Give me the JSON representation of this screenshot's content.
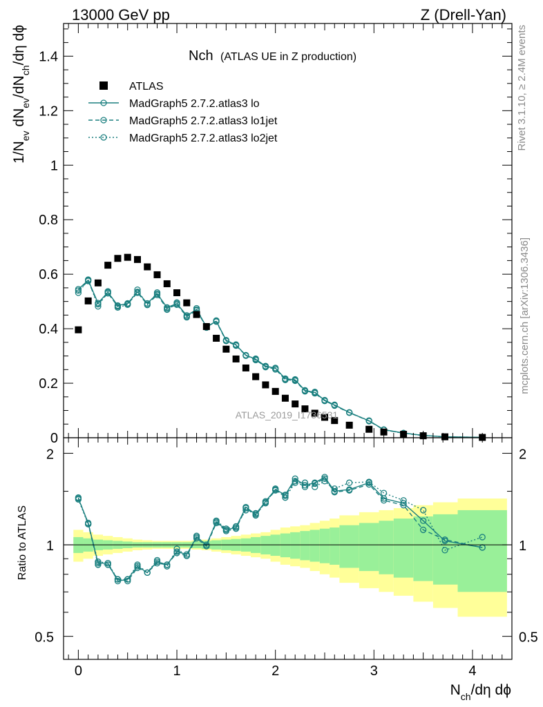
{
  "header": {
    "left": "13000 GeV pp",
    "right": "Z (Drell-Yan)"
  },
  "side_labels": {
    "rivet": "Rivet 3.1.10, ≥ 2.4M events",
    "mcplots": "mcplots.cern.ch [arXiv:1306.3436]"
  },
  "watermark": "ATLAS_2019_I1736531",
  "colors": {
    "mc": "#1a7f7f",
    "data": "#000000",
    "band_inner": "#99f099",
    "band_outer": "#ffff99"
  },
  "chart_data": [
    {
      "type": "scatter",
      "panel": "main",
      "title": "Nch",
      "subtitle": "(ATLAS UE in Z production)",
      "xlabel": "N_ch/dη dϕ",
      "ylabel": "1/N_ev dN_ev/dN_ch/dη dϕ",
      "xlim": [
        -0.15,
        4.4
      ],
      "ylim": [
        0,
        1.52
      ],
      "yticks": [
        0,
        0.2,
        0.4,
        0.6,
        0.8,
        1,
        1.2,
        1.4
      ],
      "ytick_labels": [
        "0",
        "0.2",
        "0.4",
        "0.6",
        "0.8",
        "1",
        "1.2",
        "1.4"
      ],
      "legend_position": "top-left",
      "series": [
        {
          "name": "ATLAS",
          "style": "square",
          "x": [
            0,
            0.1,
            0.2,
            0.3,
            0.4,
            0.5,
            0.6,
            0.7,
            0.8,
            0.9,
            1.0,
            1.1,
            1.2,
            1.3,
            1.4,
            1.5,
            1.6,
            1.7,
            1.8,
            1.9,
            2.0,
            2.1,
            2.2,
            2.3,
            2.4,
            2.5,
            2.6,
            2.75,
            2.95,
            3.1,
            3.3,
            3.5,
            3.72,
            4.1
          ],
          "y": [
            0.396,
            0.502,
            0.568,
            0.633,
            0.658,
            0.662,
            0.654,
            0.627,
            0.598,
            0.565,
            0.532,
            0.495,
            0.452,
            0.408,
            0.365,
            0.325,
            0.289,
            0.256,
            0.224,
            0.194,
            0.17,
            0.145,
            0.124,
            0.106,
            0.09,
            0.075,
            0.063,
            0.046,
            0.031,
            0.021,
            0.0125,
            0.0072,
            0.0034,
            0.0012
          ]
        },
        {
          "name": "MadGraph5 2.7.2.atlas3 lo",
          "style": "solid",
          "x": [
            0,
            0.1,
            0.2,
            0.3,
            0.4,
            0.5,
            0.6,
            0.7,
            0.8,
            0.9,
            1.0,
            1.1,
            1.2,
            1.3,
            1.4,
            1.5,
            1.6,
            1.7,
            1.8,
            1.9,
            2.0,
            2.1,
            2.2,
            2.3,
            2.4,
            2.5,
            2.6,
            2.75,
            2.95,
            3.1,
            3.3,
            3.5,
            3.72,
            4.1
          ],
          "y": [
            0.545,
            0.578,
            0.494,
            0.534,
            0.485,
            0.493,
            0.535,
            0.493,
            0.528,
            0.478,
            0.492,
            0.449,
            0.47,
            0.407,
            0.427,
            0.358,
            0.34,
            0.303,
            0.288,
            0.263,
            0.255,
            0.217,
            0.212,
            0.174,
            0.166,
            0.138,
            0.12,
            0.093,
            0.062,
            0.03,
            0.0172,
            0.0086,
            0.0036,
            0.0012
          ]
        },
        {
          "name": "MadGraph5 2.7.2.atlas3 lo1jet",
          "style": "dashed",
          "x": [
            0,
            0.1,
            0.2,
            0.3,
            0.4,
            0.5,
            0.6,
            0.7,
            0.8,
            0.9,
            1.0,
            1.1,
            1.2,
            1.3,
            1.4,
            1.5,
            1.6,
            1.7,
            1.8,
            1.9,
            2.0,
            2.1,
            2.2,
            2.3,
            2.4,
            2.5,
            2.6,
            2.75,
            2.95,
            3.1,
            3.3,
            3.5,
            3.72,
            4.1
          ],
          "y": [
            0.54,
            0.575,
            0.49,
            0.53,
            0.482,
            0.49,
            0.532,
            0.489,
            0.524,
            0.474,
            0.488,
            0.445,
            0.467,
            0.406,
            0.426,
            0.355,
            0.338,
            0.302,
            0.285,
            0.261,
            0.251,
            0.214,
            0.209,
            0.172,
            0.163,
            0.136,
            0.118,
            0.092,
            0.061,
            0.029,
            0.0168,
            0.0082,
            0.0035,
            0.0012
          ]
        },
        {
          "name": "MadGraph5 2.7.2.atlas3 lo2jet",
          "style": "dotted",
          "x": [
            0,
            0.1,
            0.2,
            0.3,
            0.4,
            0.5,
            0.6,
            0.7,
            0.8,
            0.9,
            1.0,
            1.1,
            1.2,
            1.3,
            1.4,
            1.5,
            1.6,
            1.7,
            1.8,
            1.9,
            2.0,
            2.1,
            2.2,
            2.3,
            2.4,
            2.5,
            2.6,
            2.75,
            2.95,
            3.1,
            3.3,
            3.5,
            3.72,
            4.1
          ],
          "y": [
            0.532,
            0.58,
            0.482,
            0.537,
            0.478,
            0.488,
            0.543,
            0.487,
            0.533,
            0.47,
            0.496,
            0.442,
            0.475,
            0.404,
            0.43,
            0.356,
            0.342,
            0.301,
            0.29,
            0.259,
            0.256,
            0.212,
            0.214,
            0.17,
            0.168,
            0.135,
            0.121,
            0.092,
            0.063,
            0.029,
            0.0168,
            0.0082,
            0.0035,
            0.0013
          ]
        }
      ]
    },
    {
      "type": "scatter",
      "panel": "ratio",
      "xlabel": "N_ch/dη dϕ",
      "ylabel": "Ratio to ATLAS",
      "xlim": [
        -0.15,
        4.4
      ],
      "ylim": [
        0.42,
        2.25
      ],
      "log_y": true,
      "xticks": [
        0,
        1,
        2,
        3,
        4
      ],
      "xtick_labels": [
        "0",
        "1",
        "2",
        "3",
        "4"
      ],
      "yticks": [
        0.5,
        1,
        2
      ],
      "ytick_labels": [
        "0.5",
        "1",
        "2"
      ],
      "band_edges": [
        -0.05,
        0.05,
        0.15,
        0.25,
        0.35,
        0.45,
        0.55,
        0.65,
        0.75,
        0.85,
        0.95,
        1.05,
        1.15,
        1.25,
        1.35,
        1.45,
        1.55,
        1.65,
        1.75,
        1.85,
        1.95,
        2.05,
        2.15,
        2.25,
        2.35,
        2.45,
        2.55,
        2.65,
        2.85,
        3.05,
        3.2,
        3.4,
        3.6,
        3.85,
        4.35
      ],
      "band_inner": [
        0.06,
        0.05,
        0.04,
        0.035,
        0.03,
        0.025,
        0.02,
        0.02,
        0.02,
        0.02,
        0.02,
        0.02,
        0.025,
        0.03,
        0.035,
        0.04,
        0.045,
        0.05,
        0.06,
        0.07,
        0.08,
        0.09,
        0.1,
        0.11,
        0.12,
        0.13,
        0.14,
        0.16,
        0.18,
        0.2,
        0.22,
        0.24,
        0.26,
        0.3
      ],
      "band_outer": [
        0.12,
        0.1,
        0.08,
        0.07,
        0.06,
        0.05,
        0.04,
        0.035,
        0.03,
        0.03,
        0.03,
        0.03,
        0.035,
        0.04,
        0.05,
        0.06,
        0.07,
        0.08,
        0.09,
        0.1,
        0.12,
        0.14,
        0.15,
        0.16,
        0.18,
        0.2,
        0.22,
        0.25,
        0.28,
        0.3,
        0.32,
        0.35,
        0.38,
        0.42
      ],
      "series": [
        {
          "name": "MadGraph5 2.7.2.atlas3 lo",
          "style": "solid",
          "x": [
            0,
            0.1,
            0.2,
            0.3,
            0.4,
            0.5,
            0.6,
            0.7,
            0.8,
            0.9,
            1.0,
            1.1,
            1.2,
            1.3,
            1.4,
            1.5,
            1.6,
            1.7,
            1.8,
            1.9,
            2.0,
            2.1,
            2.2,
            2.3,
            2.4,
            2.5,
            2.6,
            2.75,
            2.95,
            3.1,
            3.3,
            3.5,
            3.72,
            4.1
          ],
          "y": [
            1.42,
            1.18,
            0.87,
            0.87,
            0.76,
            0.77,
            0.85,
            0.81,
            0.88,
            0.86,
            0.95,
            0.93,
            1.06,
            1.0,
            1.19,
            1.12,
            1.14,
            1.33,
            1.26,
            1.39,
            1.52,
            1.46,
            1.65,
            1.57,
            1.6,
            1.67,
            1.5,
            1.52,
            1.6,
            1.42,
            1.37,
            1.2,
            1.03,
            0.98
          ]
        },
        {
          "name": "MadGraph5 2.7.2.atlas3 lo1jet",
          "style": "dashed",
          "x": [
            0,
            0.1,
            0.2,
            0.3,
            0.4,
            0.5,
            0.6,
            0.7,
            0.8,
            0.9,
            1.0,
            1.1,
            1.2,
            1.3,
            1.4,
            1.5,
            1.6,
            1.7,
            1.8,
            1.9,
            2.0,
            2.1,
            2.2,
            2.3,
            2.4,
            2.5,
            2.6,
            2.75,
            2.95,
            3.1,
            3.3,
            3.5,
            3.72,
            4.1
          ],
          "y": [
            1.43,
            1.17,
            0.86,
            0.86,
            0.77,
            0.76,
            0.84,
            0.81,
            0.87,
            0.86,
            0.94,
            0.92,
            1.05,
            0.99,
            1.18,
            1.11,
            1.13,
            1.32,
            1.25,
            1.38,
            1.51,
            1.45,
            1.62,
            1.55,
            1.59,
            1.65,
            1.49,
            1.51,
            1.58,
            1.4,
            1.35,
            1.12,
            1.04,
            0.98
          ]
        },
        {
          "name": "MadGraph5 2.7.2.atlas3 lo2jet",
          "style": "dotted",
          "x": [
            0,
            0.1,
            0.2,
            0.3,
            0.4,
            0.5,
            0.6,
            0.7,
            0.8,
            0.9,
            1.0,
            1.1,
            1.2,
            1.3,
            1.4,
            1.5,
            1.6,
            1.7,
            1.8,
            1.9,
            2.0,
            2.1,
            2.2,
            2.3,
            2.4,
            2.5,
            2.6,
            2.75,
            2.95,
            3.1,
            3.3,
            3.5,
            3.72,
            4.1
          ],
          "y": [
            1.41,
            1.17,
            0.88,
            0.87,
            0.77,
            0.77,
            0.86,
            0.81,
            0.89,
            0.85,
            0.97,
            0.92,
            1.07,
            0.99,
            1.2,
            1.13,
            1.15,
            1.3,
            1.27,
            1.37,
            1.53,
            1.43,
            1.6,
            1.6,
            1.55,
            1.62,
            1.53,
            1.6,
            1.61,
            1.48,
            1.4,
            1.3,
            0.96,
            1.06
          ]
        }
      ]
    }
  ]
}
